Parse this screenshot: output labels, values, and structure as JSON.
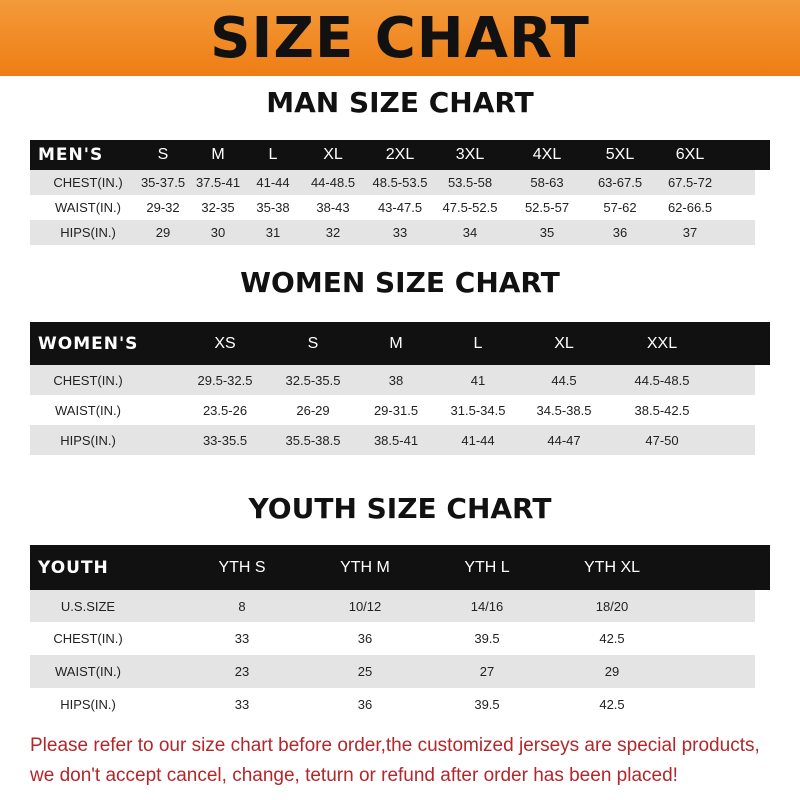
{
  "banner": {
    "title": "SIZE CHART",
    "color": "#ee7d14"
  },
  "men": {
    "title": "MAN SIZE CHART",
    "header": [
      "MEN'S",
      "S",
      "M",
      "L",
      "XL",
      "2XL",
      "3XL",
      "4XL",
      "5XL",
      "6XL"
    ],
    "rows": [
      [
        "CHEST(IN.)",
        "35-37.5",
        "37.5-41",
        "41-44",
        "44-48.5",
        "48.5-53.5",
        "53.5-58",
        "58-63",
        "63-67.5",
        "67.5-72"
      ],
      [
        "WAIST(IN.)",
        "29-32",
        "32-35",
        "35-38",
        "38-43",
        "43-47.5",
        "47.5-52.5",
        "52.5-57",
        "57-62",
        "62-66.5"
      ],
      [
        "HIPS(IN.)",
        "29",
        "30",
        "31",
        "32",
        "33",
        "34",
        "35",
        "36",
        "37"
      ]
    ]
  },
  "women": {
    "title": "WOMEN SIZE CHART",
    "header": [
      "WOMEN'S",
      "XS",
      "S",
      "M",
      "L",
      "XL",
      "XXL"
    ],
    "rows": [
      [
        "CHEST(IN.)",
        "29.5-32.5",
        "32.5-35.5",
        "38",
        "41",
        "44.5",
        "44.5-48.5"
      ],
      [
        "WAIST(IN.)",
        "23.5-26",
        "26-29",
        "29-31.5",
        "31.5-34.5",
        "34.5-38.5",
        "38.5-42.5"
      ],
      [
        "HIPS(IN.)",
        "33-35.5",
        "35.5-38.5",
        "38.5-41",
        "41-44",
        "44-47",
        "47-50"
      ]
    ]
  },
  "youth": {
    "title": "YOUTH SIZE CHART",
    "header": [
      "YOUTH",
      "YTH S",
      "YTH M",
      "YTH L",
      "YTH XL"
    ],
    "rows": [
      [
        "U.S.SIZE",
        "8",
        "10/12",
        "14/16",
        "18/20"
      ],
      [
        "CHEST(IN.)",
        "33",
        "36",
        "39.5",
        "42.5"
      ],
      [
        "WAIST(IN.)",
        "23",
        "25",
        "27",
        "29"
      ],
      [
        "HIPS(IN.)",
        "33",
        "36",
        "39.5",
        "42.5"
      ]
    ]
  },
  "note": {
    "line1": "Please refer to our size chart before order,the customized jerseys are special products,",
    "line2": "we don't accept cancel, change, teturn or refund after order has been placed!",
    "color": "#b3262a"
  }
}
